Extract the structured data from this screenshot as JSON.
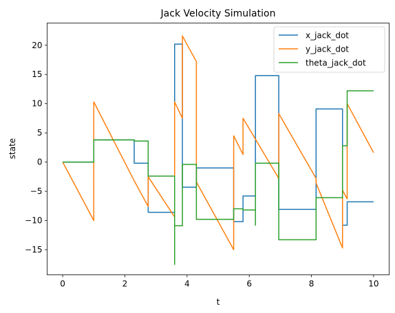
{
  "chart_data": {
    "type": "line",
    "title": "Jack Velocity Simulation",
    "xlabel": "t",
    "ylabel": "state",
    "xlim": [
      -0.5,
      10.5
    ],
    "ylim": [
      -19.3,
      23.8
    ],
    "xticks": [
      0,
      2,
      4,
      6,
      8,
      10
    ],
    "yticks": [
      -15,
      -10,
      -5,
      0,
      5,
      10,
      15,
      20
    ],
    "grid": false,
    "legend_position": "top-right",
    "series": [
      {
        "name": "x_jack_dot",
        "color": "#1f77b4",
        "points": [
          [
            0,
            0
          ],
          [
            1.0,
            0
          ],
          [
            1.0,
            3.8
          ],
          [
            2.3,
            3.8
          ],
          [
            2.3,
            -0.2
          ],
          [
            2.75,
            -0.2
          ],
          [
            2.75,
            -8.6
          ],
          [
            3.6,
            -8.6
          ],
          [
            3.6,
            20.2
          ],
          [
            3.85,
            20.2
          ],
          [
            3.85,
            -4.3
          ],
          [
            4.3,
            -4.3
          ],
          [
            4.3,
            -1.0
          ],
          [
            5.5,
            -1.0
          ],
          [
            5.5,
            -10.2
          ],
          [
            5.8,
            -10.2
          ],
          [
            5.8,
            -5.8
          ],
          [
            6.2,
            -5.8
          ],
          [
            6.2,
            14.8
          ],
          [
            6.95,
            14.8
          ],
          [
            6.95,
            -8.1
          ],
          [
            8.15,
            -8.1
          ],
          [
            8.15,
            9.1
          ],
          [
            9.0,
            9.1
          ],
          [
            9.0,
            -10.8
          ],
          [
            9.15,
            -10.8
          ],
          [
            9.15,
            -6.8
          ],
          [
            10.0,
            -6.8
          ]
        ]
      },
      {
        "name": "y_jack_dot",
        "color": "#ff7f0e",
        "points": [
          [
            0,
            0
          ],
          [
            1.0,
            -10.0
          ],
          [
            1.0,
            10.3
          ],
          [
            2.3,
            -3.2
          ],
          [
            2.75,
            -7.6
          ],
          [
            2.75,
            -2.5
          ],
          [
            3.6,
            -9.4
          ],
          [
            3.6,
            10.3
          ],
          [
            3.85,
            7.5
          ],
          [
            3.85,
            21.6
          ],
          [
            4.3,
            17.2
          ],
          [
            4.3,
            -3.4
          ],
          [
            5.5,
            -15.0
          ],
          [
            5.5,
            4.5
          ],
          [
            5.8,
            1.3
          ],
          [
            5.8,
            7.5
          ],
          [
            6.95,
            -2.8
          ],
          [
            6.95,
            8.3
          ],
          [
            8.15,
            -2.8
          ],
          [
            8.15,
            -3.6
          ],
          [
            9.0,
            -14.7
          ],
          [
            9.0,
            -4.8
          ],
          [
            9.15,
            -6.3
          ],
          [
            9.15,
            10.0
          ],
          [
            10.0,
            1.6
          ]
        ]
      },
      {
        "name": "theta_jack_dot",
        "color": "#2ca02c",
        "points": [
          [
            0,
            0
          ],
          [
            1.0,
            0
          ],
          [
            1.0,
            3.8
          ],
          [
            2.3,
            3.8
          ],
          [
            2.3,
            3.6
          ],
          [
            2.75,
            3.6
          ],
          [
            2.75,
            -2.4
          ],
          [
            3.6,
            -2.4
          ],
          [
            3.6,
            -17.5
          ],
          [
            3.6,
            -10.9
          ],
          [
            3.85,
            -10.9
          ],
          [
            3.85,
            -0.4
          ],
          [
            4.3,
            -0.4
          ],
          [
            4.3,
            -9.8
          ],
          [
            5.5,
            -9.8
          ],
          [
            5.5,
            -8.0
          ],
          [
            5.8,
            -8.0
          ],
          [
            5.8,
            -8.2
          ],
          [
            6.2,
            -8.2
          ],
          [
            6.2,
            -10.8
          ],
          [
            6.2,
            -0.2
          ],
          [
            6.95,
            -0.2
          ],
          [
            6.95,
            -13.3
          ],
          [
            8.15,
            -13.3
          ],
          [
            8.15,
            -6.1
          ],
          [
            9.0,
            -6.1
          ],
          [
            9.0,
            2.8
          ],
          [
            9.15,
            2.8
          ],
          [
            9.15,
            12.2
          ],
          [
            10.0,
            12.2
          ]
        ]
      }
    ]
  }
}
